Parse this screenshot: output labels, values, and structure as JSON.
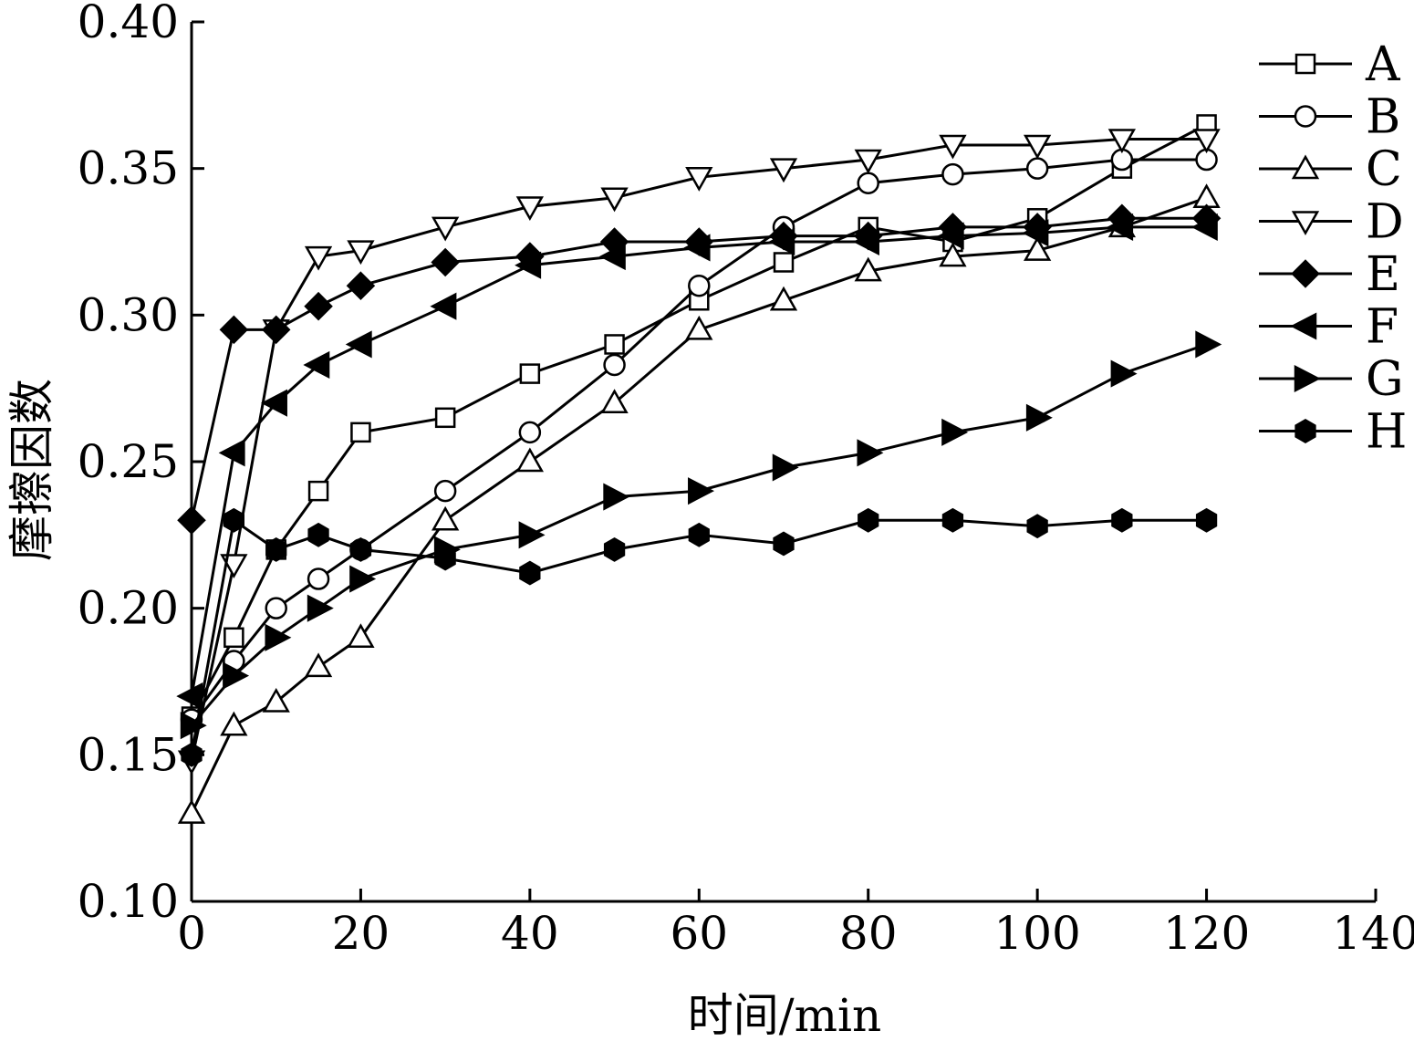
{
  "chart_data": {
    "type": "line",
    "xlabel": "时间/min",
    "ylabel": "摩擦因数",
    "xlim": [
      0,
      140
    ],
    "ylim": [
      0.1,
      0.4
    ],
    "x_ticks": [
      "0",
      "20",
      "40",
      "60",
      "80",
      "100",
      "120",
      "140"
    ],
    "y_ticks": [
      "0.10",
      "0.15",
      "0.20",
      "0.25",
      "0.30",
      "0.35",
      "0.40"
    ],
    "grid": false,
    "legend_position": "top-right",
    "series": [
      {
        "name": "A",
        "marker": "square-open",
        "x": [
          0,
          5,
          10,
          15,
          20,
          30,
          40,
          50,
          60,
          70,
          80,
          90,
          100,
          110,
          120
        ],
        "y": [
          0.163,
          0.19,
          0.22,
          0.24,
          0.26,
          0.265,
          0.28,
          0.29,
          0.305,
          0.318,
          0.33,
          0.325,
          0.333,
          0.35,
          0.365
        ]
      },
      {
        "name": "B",
        "marker": "circle-open",
        "x": [
          0,
          5,
          10,
          15,
          20,
          30,
          40,
          50,
          60,
          70,
          80,
          90,
          100,
          110,
          120
        ],
        "y": [
          0.162,
          0.182,
          0.2,
          0.21,
          0.22,
          0.24,
          0.26,
          0.283,
          0.31,
          0.33,
          0.345,
          0.348,
          0.35,
          0.353,
          0.353
        ]
      },
      {
        "name": "C",
        "marker": "triangle-up-open",
        "x": [
          0,
          5,
          10,
          15,
          20,
          30,
          40,
          50,
          60,
          70,
          80,
          90,
          100,
          110,
          120
        ],
        "y": [
          0.13,
          0.16,
          0.168,
          0.18,
          0.19,
          0.23,
          0.25,
          0.27,
          0.295,
          0.305,
          0.315,
          0.32,
          0.322,
          0.33,
          0.34
        ]
      },
      {
        "name": "D",
        "marker": "triangle-down-open",
        "x": [
          0,
          5,
          10,
          15,
          20,
          30,
          40,
          50,
          60,
          70,
          80,
          90,
          100,
          110,
          120
        ],
        "y": [
          0.148,
          0.215,
          0.295,
          0.32,
          0.322,
          0.33,
          0.337,
          0.34,
          0.347,
          0.35,
          0.353,
          0.358,
          0.358,
          0.36,
          0.36
        ]
      },
      {
        "name": "E",
        "marker": "diamond-filled",
        "x": [
          0,
          5,
          10,
          15,
          20,
          30,
          40,
          50,
          60,
          70,
          80,
          90,
          100,
          110,
          120
        ],
        "y": [
          0.23,
          0.295,
          0.295,
          0.303,
          0.31,
          0.318,
          0.32,
          0.325,
          0.325,
          0.327,
          0.327,
          0.33,
          0.33,
          0.333,
          0.333
        ]
      },
      {
        "name": "F",
        "marker": "triangle-left-filled",
        "x": [
          0,
          5,
          10,
          15,
          20,
          30,
          40,
          50,
          60,
          70,
          80,
          90,
          100,
          110,
          120
        ],
        "y": [
          0.17,
          0.253,
          0.27,
          0.283,
          0.29,
          0.303,
          0.317,
          0.32,
          0.323,
          0.325,
          0.325,
          0.327,
          0.328,
          0.33,
          0.33
        ]
      },
      {
        "name": "G",
        "marker": "triangle-right-filled",
        "x": [
          0,
          5,
          10,
          15,
          20,
          30,
          40,
          50,
          60,
          70,
          80,
          90,
          100,
          110,
          120
        ],
        "y": [
          0.16,
          0.177,
          0.19,
          0.2,
          0.21,
          0.22,
          0.225,
          0.238,
          0.24,
          0.248,
          0.253,
          0.26,
          0.265,
          0.28,
          0.29
        ]
      },
      {
        "name": "H",
        "marker": "hexagon-filled",
        "x": [
          0,
          5,
          10,
          15,
          20,
          30,
          40,
          50,
          60,
          70,
          80,
          90,
          100,
          110,
          120
        ],
        "y": [
          0.15,
          0.23,
          0.22,
          0.225,
          0.22,
          0.217,
          0.212,
          0.22,
          0.225,
          0.222,
          0.23,
          0.23,
          0.228,
          0.23,
          0.23
        ]
      }
    ]
  }
}
